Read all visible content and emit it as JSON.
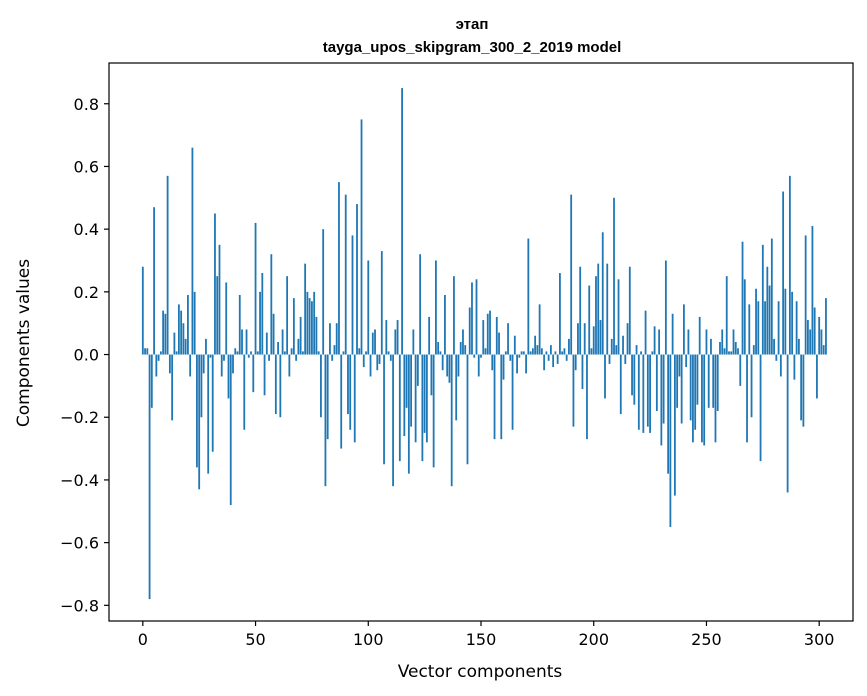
{
  "chart_data": {
    "type": "bar",
    "title": "этап",
    "subtitle": "tayga_upos_skipgram_300_2_2019 model",
    "xlabel": "Vector components",
    "ylabel": "Components values",
    "xlim": [
      -15,
      315
    ],
    "ylim": [
      -0.85,
      0.93
    ],
    "xticks": [
      0,
      50,
      100,
      150,
      200,
      250,
      300
    ],
    "xtick_labels": [
      "0",
      "50",
      "100",
      "150",
      "200",
      "250",
      "300"
    ],
    "yticks": [
      -0.8,
      -0.6,
      -0.4,
      -0.2,
      0.0,
      0.2,
      0.4,
      0.6,
      0.8
    ],
    "ytick_labels": [
      "−0.8",
      "−0.6",
      "−0.4",
      "−0.2",
      "0.0",
      "0.2",
      "0.4",
      "0.6",
      "0.8"
    ],
    "bar_color": "#1f77b4",
    "values": [
      0.28,
      0.02,
      0.02,
      -0.78,
      -0.17,
      0.47,
      -0.07,
      -0.02,
      0.01,
      0.14,
      0.13,
      0.57,
      -0.06,
      -0.21,
      0.07,
      0.01,
      0.16,
      0.14,
      0.1,
      0.05,
      0.19,
      -0.07,
      0.66,
      0.2,
      -0.36,
      -0.43,
      -0.2,
      -0.06,
      0.05,
      -0.38,
      -0.01,
      -0.31,
      0.45,
      0.25,
      0.35,
      -0.07,
      -0.02,
      0.23,
      -0.14,
      -0.48,
      -0.06,
      0.02,
      0.01,
      0.19,
      0.08,
      -0.24,
      0.08,
      -0.01,
      0.01,
      -0.12,
      0.42,
      0.01,
      0.2,
      0.26,
      -0.13,
      0.07,
      -0.02,
      0.32,
      0.13,
      -0.19,
      0.04,
      -0.2,
      0.08,
      0.01,
      0.25,
      -0.07,
      0.02,
      0.18,
      -0.02,
      0.05,
      0.12,
      0.01,
      0.29,
      0.2,
      0.18,
      0.17,
      0.2,
      0.12,
      0.01,
      -0.2,
      0.4,
      -0.42,
      -0.27,
      0.1,
      -0.02,
      0.03,
      0.1,
      0.55,
      -0.3,
      0.01,
      0.51,
      -0.19,
      -0.24,
      0.38,
      -0.28,
      0.48,
      0.02,
      0.75,
      -0.04,
      0.01,
      0.3,
      -0.07,
      0.07,
      0.08,
      -0.05,
      -0.03,
      0.33,
      -0.35,
      0.11,
      0.01,
      -0.02,
      -0.42,
      0.08,
      0.11,
      -0.34,
      0.85,
      -0.26,
      -0.17,
      -0.38,
      -0.23,
      0.08,
      -0.28,
      -0.1,
      0.32,
      -0.34,
      -0.25,
      -0.28,
      0.12,
      -0.13,
      -0.36,
      0.3,
      0.04,
      0.01,
      -0.05,
      0.19,
      -0.07,
      -0.09,
      -0.42,
      0.25,
      -0.21,
      -0.07,
      0.04,
      0.08,
      0.03,
      -0.35,
      0.15,
      0.23,
      -0.01,
      0.24,
      -0.07,
      -0.01,
      0.11,
      0.02,
      0.13,
      0.14,
      -0.05,
      -0.27,
      0.12,
      0.07,
      -0.27,
      -0.08,
      0.01,
      0.1,
      -0.02,
      -0.24,
      0.06,
      -0.06,
      -0.01,
      0.01,
      0.01,
      -0.06,
      0.37,
      0.01,
      0.02,
      0.06,
      0.03,
      0.16,
      0.02,
      -0.05,
      0.01,
      -0.02,
      0.03,
      -0.04,
      0.01,
      -0.03,
      0.26,
      0.01,
      0.02,
      -0.02,
      0.05,
      0.51,
      -0.23,
      -0.05,
      0.1,
      0.28,
      -0.11,
      0.1,
      -0.27,
      0.22,
      0.02,
      0.09,
      0.25,
      0.29,
      0.11,
      0.39,
      -0.14,
      0.29,
      -0.03,
      0.05,
      0.5,
      0.03,
      0.24,
      -0.19,
      0.06,
      -0.03,
      0.1,
      0.28,
      -0.13,
      -0.16,
      0.03,
      -0.24,
      0.01,
      -0.25,
      0.14,
      -0.23,
      -0.25,
      0.01,
      0.09,
      -0.18,
      0.08,
      -0.29,
      -0.22,
      0.3,
      -0.38,
      -0.55,
      0.13,
      -0.45,
      -0.17,
      -0.07,
      -0.22,
      0.16,
      -0.04,
      0.08,
      -0.21,
      -0.28,
      -0.24,
      -0.16,
      0.12,
      -0.28,
      -0.29,
      0.08,
      -0.17,
      0.05,
      -0.17,
      -0.28,
      -0.18,
      0.04,
      0.08,
      0.02,
      0.25,
      0.01,
      0.01,
      0.08,
      0.04,
      0.02,
      -0.1,
      0.36,
      0.24,
      -0.28,
      0.16,
      -0.2,
      0.03,
      0.21,
      0.17,
      -0.34,
      0.35,
      0.17,
      0.28,
      0.22,
      0.37,
      0.05,
      -0.02,
      0.17,
      -0.07,
      0.52,
      0.21,
      -0.44,
      0.57,
      0.2,
      -0.08,
      0.17,
      0.05,
      -0.21,
      -0.23,
      0.38,
      0.11,
      0.08,
      0.41,
      0.15,
      -0.14,
      0.12,
      0.08,
      0.03,
      0.18
    ]
  }
}
